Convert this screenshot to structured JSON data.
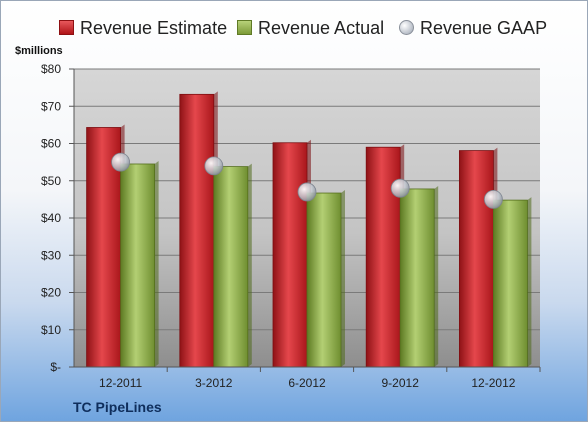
{
  "chart_data": {
    "type": "bar",
    "title": "",
    "unit_label": "$millions",
    "ylim": [
      0,
      80
    ],
    "y_ticks": [
      {
        "value": 0,
        "label": "$-"
      },
      {
        "value": 10,
        "label": "$10"
      },
      {
        "value": 20,
        "label": "$20"
      },
      {
        "value": 30,
        "label": "$30"
      },
      {
        "value": 40,
        "label": "$40"
      },
      {
        "value": 50,
        "label": "$50"
      },
      {
        "value": 60,
        "label": "$60"
      },
      {
        "value": 70,
        "label": "$70"
      },
      {
        "value": 80,
        "label": "$80"
      }
    ],
    "grid": true,
    "legend_position": "top",
    "categories": [
      "12-2011",
      "3-2012",
      "6-2012",
      "9-2012",
      "12-2012"
    ],
    "series": [
      {
        "name": "Revenue Estimate",
        "kind": "bar",
        "color": "#c4252a",
        "values": [
          64.3,
          73.2,
          60.2,
          59.0,
          58.1
        ]
      },
      {
        "name": "Revenue Actual",
        "kind": "bar",
        "color": "#8fae4a",
        "values": [
          54.5,
          53.8,
          46.7,
          47.8,
          44.8
        ]
      },
      {
        "name": "Revenue GAAP",
        "kind": "marker",
        "color": "#c2c7cf",
        "values": [
          55.0,
          54.0,
          47.0,
          48.0,
          45.0
        ]
      }
    ]
  },
  "footer": {
    "company": "TC PipeLines"
  }
}
